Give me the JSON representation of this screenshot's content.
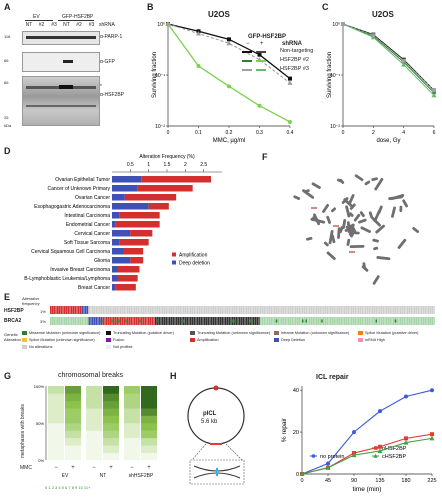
{
  "panel_labels": {
    "a": "A",
    "b": "B",
    "c": "C",
    "d": "D",
    "e": "E",
    "f": "F",
    "g": "G",
    "h": "H"
  },
  "panel_a": {
    "group_ev": "EV",
    "group_gfp": "GFP-HSF2BP",
    "lanes": [
      "NT",
      "#2",
      "#3",
      "NT",
      "#2",
      "#3"
    ],
    "shrna_label": "shRNA",
    "bands": [
      "α-PARP-1",
      "α-GFP",
      "α-HSF2BP"
    ],
    "kda": [
      "116",
      "66",
      "66",
      "25",
      "kDa"
    ],
    "star": "*"
  },
  "panel_b": {
    "title": "U2OS",
    "legend_title": "GFP-HSF2BP",
    "legend_minus": "−",
    "legend_plus": "+",
    "legend_shrna": "shRNA",
    "xlabel": "MMC, µg/ml",
    "ylabel": "Surviving fraction",
    "yticks": [
      "10⁰",
      "10⁻¹",
      "10⁻²"
    ],
    "xticks": [
      "0",
      "0.1",
      "0.2",
      "0.3",
      "0.4"
    ]
  },
  "panel_c": {
    "title": "U2OS",
    "xlabel": "dose, Gy",
    "ylabel": "Surviving fraction",
    "yticks": [
      "10⁰",
      "10⁻¹",
      "10⁻²"
    ],
    "xticks": [
      "0",
      "2",
      "4",
      "6"
    ]
  },
  "panel_d": {
    "axis_title": "Alteration Frequency (%)",
    "ticks": [
      "0.5",
      "1",
      "1.5",
      "2",
      "2.5"
    ],
    "legend": [
      "Amplification",
      "Deep deletion"
    ]
  },
  "panel_e": {
    "header_line1": "Alteration",
    "header_line2": "frequency",
    "gene_label": "HSF2BP",
    "gene_label2": "BRCA2",
    "genetic_alteration": "Genetic Alteration",
    "legend_items": [
      "Missense Mutation (unknown significance)",
      "Truncating Mutation (putative driver)",
      "Truncating Mutation (unknown significance)",
      "Inframe Mutation (unknown significance)",
      "Splice Mutation (putative driver)",
      "Splice Mutation (unknown significance)",
      "Fusion",
      "Amplification",
      "Deep Deletion",
      "mRNA High",
      "No alterations",
      "Not profiled"
    ]
  },
  "panel_g": {
    "title": "chromosomal breaks",
    "ylabel": "metaphases with breaks",
    "x_groups": [
      "EV",
      "NT",
      "shHSF2BP",
      "shHSF2BP"
    ],
    "mmc_label": "MMC",
    "mmc_values": [
      "−",
      "+",
      "−",
      "+",
      "−",
      "+"
    ],
    "scale_label": "0 1 2 3 4 5 6 7 8 9 10 11+"
  },
  "panel_h": {
    "plasmid_name": "pICL",
    "plasmid_size": "5.6 kb",
    "title": "ICL repair",
    "ylabel": "% repair",
    "xlabel": "time (min)",
    "xticks": [
      "0",
      "45",
      "90",
      "135",
      "180",
      "225"
    ],
    "yticks": [
      "0",
      "20",
      "40"
    ],
    "legend": [
      "no protein",
      "nHSF2BP",
      "cHSF2BP"
    ]
  },
  "chart_data": [
    {
      "type": "line",
      "title": "U2OS",
      "xlabel": "MMC, µg/ml",
      "ylabel": "Surviving fraction",
      "x": [
        0,
        0.1,
        0.2,
        0.3,
        0.4
      ],
      "ylog": true,
      "ylim": [
        0.01,
        1
      ],
      "series": [
        {
          "name": "Non-targeting",
          "values": [
            1.0,
            0.72,
            0.5,
            0.25,
            0.085
          ],
          "colors": {
            "minus": "#111111",
            "plus": "#444444"
          }
        },
        {
          "name": "HSF2BP #2",
          "values": [
            1.0,
            0.15,
            0.06,
            0.025,
            0.012
          ],
          "colors": {
            "minus": "#2e7d32",
            "plus": "#7bd14a"
          }
        },
        {
          "name": "HSF2BP #3",
          "values": [
            1.0,
            0.65,
            0.42,
            0.2,
            0.07
          ],
          "colors": {
            "minus": "#9e9e9e",
            "plus": "#66bb6a"
          }
        }
      ]
    },
    {
      "type": "line",
      "title": "U2OS",
      "xlabel": "dose, Gy",
      "ylabel": "Surviving fraction",
      "x": [
        0,
        2,
        4,
        6
      ],
      "ylog": true,
      "ylim": [
        0.01,
        1
      ],
      "series": [
        {
          "values": [
            1.0,
            0.62,
            0.2,
            0.05
          ],
          "color": "#222222"
        },
        {
          "values": [
            1.0,
            0.58,
            0.18,
            0.045
          ],
          "color": "#2e7d32"
        },
        {
          "values": [
            1.0,
            0.55,
            0.16,
            0.04
          ],
          "color": "#66bb6a"
        },
        {
          "values": [
            1.0,
            0.6,
            0.19,
            0.05
          ],
          "color": "#9e9e9e"
        }
      ]
    },
    {
      "type": "bar",
      "orientation": "horizontal-stacked",
      "xlabel": "Alteration Frequency (%)",
      "xlim": [
        0,
        3
      ],
      "categories": [
        "Ovarian Epithelial Tumor",
        "Cancer of Unknown Primary",
        "Ovarian Cancer",
        "Esophagogastric Adenocarcinoma",
        "Intestinal Carcinoma",
        "Endometrial Cancer",
        "Cervical Cancer",
        "Soft Tissue Sarcoma",
        "Cervical Squamous Cell Carcinoma",
        "Glioma",
        "Invasive Breast Carcinoma",
        "B-Lymphoblastic Leukemia/Lymphoma",
        "Breast Cancer"
      ],
      "series": [
        {
          "name": "Amplification",
          "color": "#d32f2f",
          "values": [
            1.9,
            1.5,
            1.4,
            0.55,
            1.1,
            1.2,
            0.6,
            0.8,
            0.55,
            0.35,
            0.6,
            0.55,
            0.55
          ]
        },
        {
          "name": "Deep deletion",
          "color": "#3f51b5",
          "values": [
            0.8,
            0.7,
            0.35,
            1.0,
            0.2,
            0.1,
            0.5,
            0.2,
            0.3,
            0.5,
            0.15,
            0.15,
            0.1
          ]
        }
      ]
    },
    {
      "type": "line",
      "title": "ICL repair",
      "xlabel": "time (min)",
      "ylabel": "% repair",
      "x": [
        0,
        45,
        90,
        135,
        180,
        225
      ],
      "ylim": [
        0,
        42
      ],
      "series": [
        {
          "name": "no protein",
          "color": "#3b5bdb",
          "values": [
            0,
            5,
            20,
            30,
            37,
            40
          ]
        },
        {
          "name": "nHSF2BP",
          "color": "#e53935",
          "values": [
            0,
            3,
            10,
            13,
            17,
            19
          ]
        },
        {
          "name": "cHSF2BP",
          "color": "#43a047",
          "values": [
            0,
            3,
            9,
            11,
            15,
            17
          ]
        }
      ]
    }
  ],
  "colors": {
    "amp": "#d32f2f",
    "del": "#3f51b5",
    "missense": "#2e7d32",
    "no_alt": "#cfcfcf",
    "green_light": "#a5d6a7"
  }
}
